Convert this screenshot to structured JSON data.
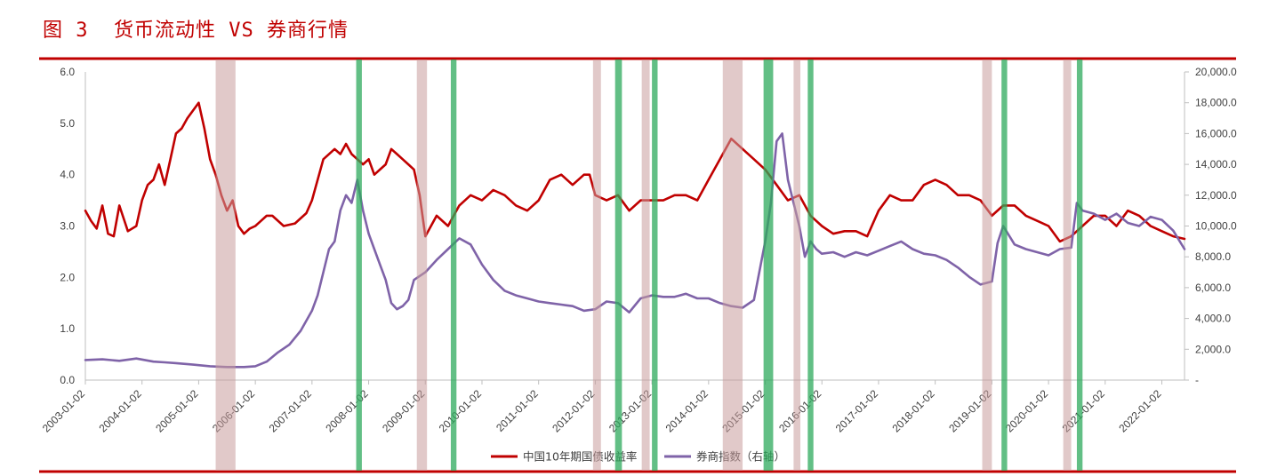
{
  "figure": {
    "label": "图 3",
    "title": "货币流动性 VS 券商行情",
    "accent": "#c00000"
  },
  "chart_data": {
    "type": "line",
    "left_axis": {
      "ylim": [
        0,
        6
      ],
      "ticks": [
        "0.0",
        "1.0",
        "2.0",
        "3.0",
        "4.0",
        "5.0",
        "6.0"
      ]
    },
    "right_axis": {
      "ylim": [
        0,
        20000
      ],
      "ticks": [
        "-",
        "2,000.0",
        "4,000.0",
        "6,000.0",
        "8,000.0",
        "10,000.0",
        "12,000.0",
        "14,000.0",
        "16,000.0",
        "18,000.0",
        "20,000.0"
      ]
    },
    "x_range": [
      2003.0,
      2022.4
    ],
    "x_ticks": [
      "2003-01-02",
      "2004-01-02",
      "2005-01-02",
      "2006-01-02",
      "2007-01-02",
      "2008-01-02",
      "2009-01-02",
      "2010-01-02",
      "2011-01-02",
      "2012-01-02",
      "2013-01-02",
      "2014-01-02",
      "2015-01-02",
      "2016-01-02",
      "2017-01-02",
      "2018-01-02",
      "2019-01-02",
      "2020-01-02",
      "2021-01-02",
      "2022-01-02"
    ],
    "series": [
      {
        "name": "中国10年期国债收益率",
        "axis": "left",
        "color": "#c00000",
        "x": [
          2003.0,
          2003.1,
          2003.2,
          2003.3,
          2003.4,
          2003.5,
          2003.6,
          2003.75,
          2003.9,
          2004.0,
          2004.1,
          2004.2,
          2004.3,
          2004.4,
          2004.5,
          2004.6,
          2004.7,
          2004.8,
          2004.9,
          2005.0,
          2005.1,
          2005.2,
          2005.3,
          2005.4,
          2005.5,
          2005.6,
          2005.7,
          2005.8,
          2005.9,
          2006.0,
          2006.1,
          2006.2,
          2006.3,
          2006.5,
          2006.7,
          2006.9,
          2007.0,
          2007.2,
          2007.4,
          2007.5,
          2007.6,
          2007.7,
          2007.8,
          2007.9,
          2008.0,
          2008.1,
          2008.2,
          2008.3,
          2008.4,
          2008.5,
          2008.6,
          2008.7,
          2008.8,
          2008.9,
          2009.0,
          2009.2,
          2009.4,
          2009.6,
          2009.8,
          2010.0,
          2010.2,
          2010.4,
          2010.6,
          2010.8,
          2011.0,
          2011.2,
          2011.4,
          2011.6,
          2011.8,
          2011.9,
          2012.0,
          2012.2,
          2012.4,
          2012.6,
          2012.8,
          2013.0,
          2013.2,
          2013.4,
          2013.6,
          2013.8,
          2014.0,
          2014.2,
          2014.4,
          2014.6,
          2014.8,
          2015.0,
          2015.2,
          2015.4,
          2015.6,
          2015.8,
          2016.0,
          2016.2,
          2016.4,
          2016.6,
          2016.8,
          2017.0,
          2017.2,
          2017.4,
          2017.6,
          2017.8,
          2018.0,
          2018.2,
          2018.4,
          2018.6,
          2018.8,
          2019.0,
          2019.2,
          2019.4,
          2019.6,
          2019.8,
          2020.0,
          2020.2,
          2020.4,
          2020.6,
          2020.8,
          2021.0,
          2021.2,
          2021.4,
          2021.6,
          2021.8,
          2022.0,
          2022.2,
          2022.4
        ],
        "y": [
          3.3,
          3.1,
          2.95,
          3.4,
          2.85,
          2.8,
          3.4,
          2.9,
          3.0,
          3.5,
          3.8,
          3.9,
          4.2,
          3.8,
          4.3,
          4.8,
          4.9,
          5.1,
          5.25,
          5.4,
          4.9,
          4.3,
          4.0,
          3.6,
          3.3,
          3.5,
          3.0,
          2.85,
          2.95,
          3.0,
          3.1,
          3.2,
          3.2,
          3.0,
          3.05,
          3.25,
          3.5,
          4.3,
          4.5,
          4.4,
          4.6,
          4.4,
          4.3,
          4.2,
          4.3,
          4.0,
          4.1,
          4.2,
          4.5,
          4.4,
          4.3,
          4.2,
          4.1,
          3.6,
          2.8,
          3.2,
          3.0,
          3.4,
          3.6,
          3.5,
          3.7,
          3.6,
          3.4,
          3.3,
          3.5,
          3.9,
          4.0,
          3.8,
          4.0,
          4.0,
          3.6,
          3.5,
          3.6,
          3.3,
          3.5,
          3.5,
          3.5,
          3.6,
          3.6,
          3.5,
          3.9,
          4.3,
          4.7,
          4.5,
          4.3,
          4.1,
          3.8,
          3.5,
          3.6,
          3.2,
          3.0,
          2.85,
          2.9,
          2.9,
          2.8,
          3.3,
          3.6,
          3.5,
          3.5,
          3.8,
          3.9,
          3.8,
          3.6,
          3.6,
          3.5,
          3.2,
          3.4,
          3.4,
          3.2,
          3.1,
          3.0,
          2.7,
          2.8,
          3.0,
          3.2,
          3.2,
          3.0,
          3.3,
          3.2,
          3.0,
          2.9,
          2.8,
          2.75
        ]
      },
      {
        "name": "券商指数（右轴）",
        "axis": "right",
        "color": "#7f63a8",
        "x": [
          2003.0,
          2003.3,
          2003.6,
          2003.9,
          2004.2,
          2004.4,
          2004.6,
          2004.9,
          2005.2,
          2005.5,
          2005.8,
          2006.0,
          2006.2,
          2006.4,
          2006.6,
          2006.8,
          2007.0,
          2007.1,
          2007.2,
          2007.3,
          2007.4,
          2007.5,
          2007.6,
          2007.7,
          2007.8,
          2007.9,
          2008.0,
          2008.1,
          2008.2,
          2008.3,
          2008.4,
          2008.5,
          2008.6,
          2008.7,
          2008.8,
          2009.0,
          2009.2,
          2009.4,
          2009.6,
          2009.8,
          2010.0,
          2010.2,
          2010.4,
          2010.6,
          2010.8,
          2011.0,
          2011.2,
          2011.4,
          2011.6,
          2011.8,
          2012.0,
          2012.2,
          2012.4,
          2012.6,
          2012.8,
          2013.0,
          2013.2,
          2013.4,
          2013.6,
          2013.8,
          2014.0,
          2014.2,
          2014.4,
          2014.6,
          2014.8,
          2015.0,
          2015.1,
          2015.2,
          2015.3,
          2015.4,
          2015.5,
          2015.6,
          2015.7,
          2015.8,
          2015.9,
          2016.0,
          2016.2,
          2016.4,
          2016.6,
          2016.8,
          2017.0,
          2017.2,
          2017.4,
          2017.6,
          2017.8,
          2018.0,
          2018.2,
          2018.4,
          2018.6,
          2018.8,
          2019.0,
          2019.1,
          2019.2,
          2019.4,
          2019.6,
          2019.8,
          2020.0,
          2020.2,
          2020.4,
          2020.5,
          2020.6,
          2020.8,
          2021.0,
          2021.2,
          2021.4,
          2021.6,
          2021.8,
          2022.0,
          2022.2,
          2022.4
        ],
        "y": [
          1300,
          1350,
          1250,
          1400,
          1200,
          1150,
          1100,
          1000,
          900,
          850,
          850,
          900,
          1200,
          1800,
          2300,
          3200,
          4500,
          5500,
          7000,
          8500,
          9000,
          11000,
          12000,
          11500,
          13000,
          11000,
          9500,
          8500,
          7500,
          6500,
          5000,
          4600,
          4800,
          5200,
          6500,
          7000,
          7800,
          8500,
          9200,
          8800,
          7500,
          6500,
          5800,
          5500,
          5300,
          5100,
          5000,
          4900,
          4800,
          4500,
          4600,
          5100,
          5000,
          4400,
          5300,
          5500,
          5400,
          5400,
          5600,
          5300,
          5300,
          5000,
          4800,
          4700,
          5200,
          9000,
          11500,
          15500,
          16000,
          13000,
          11500,
          10000,
          8000,
          9000,
          8500,
          8200,
          8300,
          8000,
          8300,
          8100,
          8400,
          8700,
          9000,
          8500,
          8200,
          8100,
          7800,
          7300,
          6700,
          6200,
          6400,
          8900,
          10000,
          8800,
          8500,
          8300,
          8100,
          8500,
          8600,
          11500,
          11000,
          10800,
          10400,
          10800,
          10200,
          10000,
          10600,
          10400,
          9700,
          8500
        ]
      }
    ],
    "shaded_periods": {
      "tightening": {
        "color": "#c89c9c",
        "periods": [
          [
            2005.3,
            2005.65
          ],
          [
            2008.85,
            2009.03
          ],
          [
            2011.96,
            2012.1
          ],
          [
            2012.82,
            2012.96
          ],
          [
            2014.25,
            2014.6
          ],
          [
            2015.5,
            2015.62
          ],
          [
            2018.83,
            2019.0
          ],
          [
            2020.26,
            2020.4
          ]
        ]
      },
      "easing": {
        "color": "#2eaa5c",
        "periods": [
          [
            2007.78,
            2007.88
          ],
          [
            2009.45,
            2009.55
          ],
          [
            2012.35,
            2012.47
          ],
          [
            2013.0,
            2013.1
          ],
          [
            2014.97,
            2015.14
          ],
          [
            2015.75,
            2015.85
          ],
          [
            2019.17,
            2019.27
          ],
          [
            2020.5,
            2020.6
          ]
        ]
      }
    }
  }
}
